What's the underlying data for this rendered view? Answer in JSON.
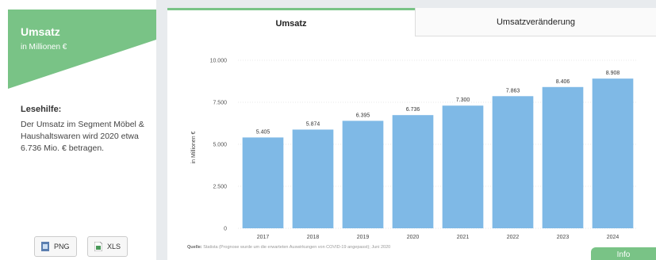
{
  "left": {
    "title": "Umsatz",
    "subtitle": "in Millionen €",
    "help_title": "Lesehilfe:",
    "help_text": "Der Umsatz im Segment Möbel & Haushaltswaren wird 2020 etwa 6.736 Mio. € betragen."
  },
  "downloads": {
    "png_label": "PNG",
    "xls_label": "XLS"
  },
  "tabs": {
    "active": "Umsatz",
    "inactive": "Umsatzveränderung"
  },
  "source": {
    "label": "Quelle:",
    "text": "Statista (Prognose wurde um die erwarteten Auswirkungen von COVID-19 angepasst); Juni 2020"
  },
  "info_label": "Info",
  "colors": {
    "accent": "#79c386",
    "bar": "#7fb9e6"
  },
  "chart_data": {
    "type": "bar",
    "categories": [
      "2017",
      "2018",
      "2019",
      "2020",
      "2021",
      "2022",
      "2023",
      "2024"
    ],
    "values": [
      5405,
      5874,
      6395,
      6736,
      7300,
      7863,
      8406,
      8908
    ],
    "value_labels": [
      "5.405",
      "5.874",
      "6.395",
      "6.736",
      "7.300",
      "7.863",
      "8.406",
      "8.908"
    ],
    "ylabel": "in Millionen €",
    "ylim": [
      0,
      10000
    ],
    "yticks": [
      0,
      2500,
      5000,
      7500,
      10000
    ],
    "ytick_labels": [
      "0",
      "2.500",
      "5.000",
      "7.500",
      "10.000"
    ],
    "grid": true
  }
}
